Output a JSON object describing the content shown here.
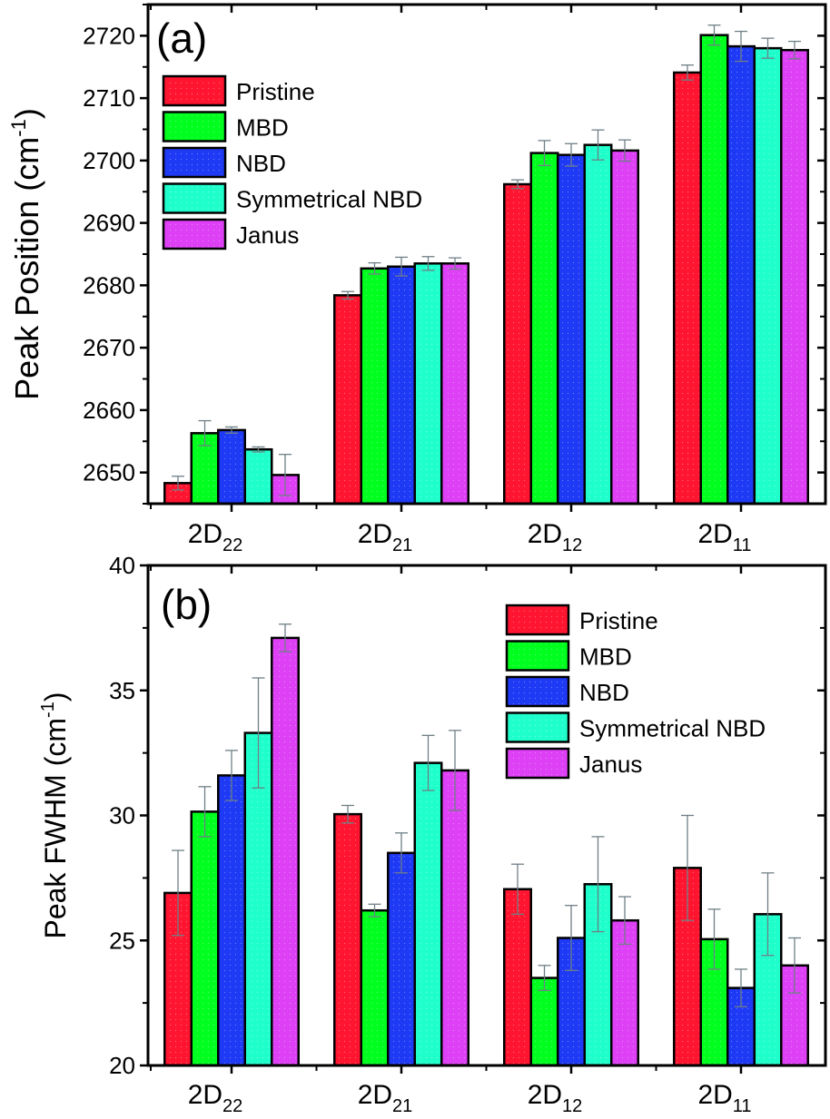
{
  "series_colors": {
    "Pristine": "#ff1530",
    "MBD": "#00ff1f",
    "NBD": "#1f3af5",
    "Symmetrical NBD": "#1fffcc",
    "Janus": "#de40f5"
  },
  "chart_data": [
    {
      "type": "bar",
      "panel_label": "(a)",
      "title": "",
      "xlabel": "",
      "ylabel": "Peak Position (cm",
      "ylabel_sup": "-1",
      "ylabel_end": ")",
      "categories": [
        {
          "base": "2D",
          "sub": "22"
        },
        {
          "base": "2D",
          "sub": "21"
        },
        {
          "base": "2D",
          "sub": "12"
        },
        {
          "base": "2D",
          "sub": "11"
        }
      ],
      "ylim": [
        2645,
        2725
      ],
      "yticks": [
        2650,
        2660,
        2670,
        2680,
        2690,
        2700,
        2710,
        2720
      ],
      "ytick_labels": [
        "2650",
        "2660",
        "2670",
        "2680",
        "2690",
        "2700",
        "2710",
        "2720"
      ],
      "grid": false,
      "legend_position": "top-left",
      "series": [
        {
          "name": "Pristine",
          "values": [
            2648.3,
            2678.4,
            2696.2,
            2714.1
          ],
          "errors": [
            1.1,
            0.6,
            0.7,
            1.2
          ]
        },
        {
          "name": "MBD",
          "values": [
            2656.3,
            2682.7,
            2701.2,
            2720.1
          ],
          "errors": [
            2.0,
            0.9,
            2.0,
            1.6
          ]
        },
        {
          "name": "NBD",
          "values": [
            2656.8,
            2683.0,
            2700.9,
            2718.3
          ],
          "errors": [
            0.5,
            1.5,
            1.8,
            2.4
          ]
        },
        {
          "name": "Symmetrical NBD",
          "values": [
            2653.7,
            2683.5,
            2702.5,
            2718.0
          ],
          "errors": [
            0.4,
            1.1,
            2.4,
            1.6
          ]
        },
        {
          "name": "Janus",
          "values": [
            2649.6,
            2683.5,
            2701.6,
            2717.7
          ],
          "errors": [
            3.3,
            0.9,
            1.7,
            1.4
          ]
        }
      ]
    },
    {
      "type": "bar",
      "panel_label": "(b)",
      "title": "",
      "xlabel": "",
      "ylabel": "Peak FWHM (cm",
      "ylabel_sup": "-1",
      "ylabel_end": ")",
      "categories": [
        {
          "base": "2D",
          "sub": "22"
        },
        {
          "base": "2D",
          "sub": "21"
        },
        {
          "base": "2D",
          "sub": "12"
        },
        {
          "base": "2D",
          "sub": "11"
        }
      ],
      "ylim": [
        20,
        40
      ],
      "yticks": [
        20,
        25,
        30,
        35,
        40
      ],
      "ytick_labels": [
        "20",
        "25",
        "30",
        "35",
        "40"
      ],
      "grid": false,
      "legend_position": "top-right",
      "series": [
        {
          "name": "Pristine",
          "values": [
            26.9,
            30.05,
            27.05,
            27.9
          ],
          "errors": [
            1.7,
            0.35,
            1.0,
            2.1
          ]
        },
        {
          "name": "MBD",
          "values": [
            30.15,
            26.2,
            23.5,
            25.05
          ],
          "errors": [
            1.0,
            0.25,
            0.5,
            1.2
          ]
        },
        {
          "name": "NBD",
          "values": [
            31.6,
            28.5,
            25.1,
            23.1
          ],
          "errors": [
            1.0,
            0.8,
            1.3,
            0.75
          ]
        },
        {
          "name": "Symmetrical NBD",
          "values": [
            33.3,
            32.1,
            27.25,
            26.05
          ],
          "errors": [
            2.2,
            1.1,
            1.9,
            1.65
          ]
        },
        {
          "name": "Janus",
          "values": [
            37.1,
            31.8,
            25.8,
            24.0
          ],
          "errors": [
            0.55,
            1.6,
            0.95,
            1.1
          ]
        }
      ]
    }
  ]
}
